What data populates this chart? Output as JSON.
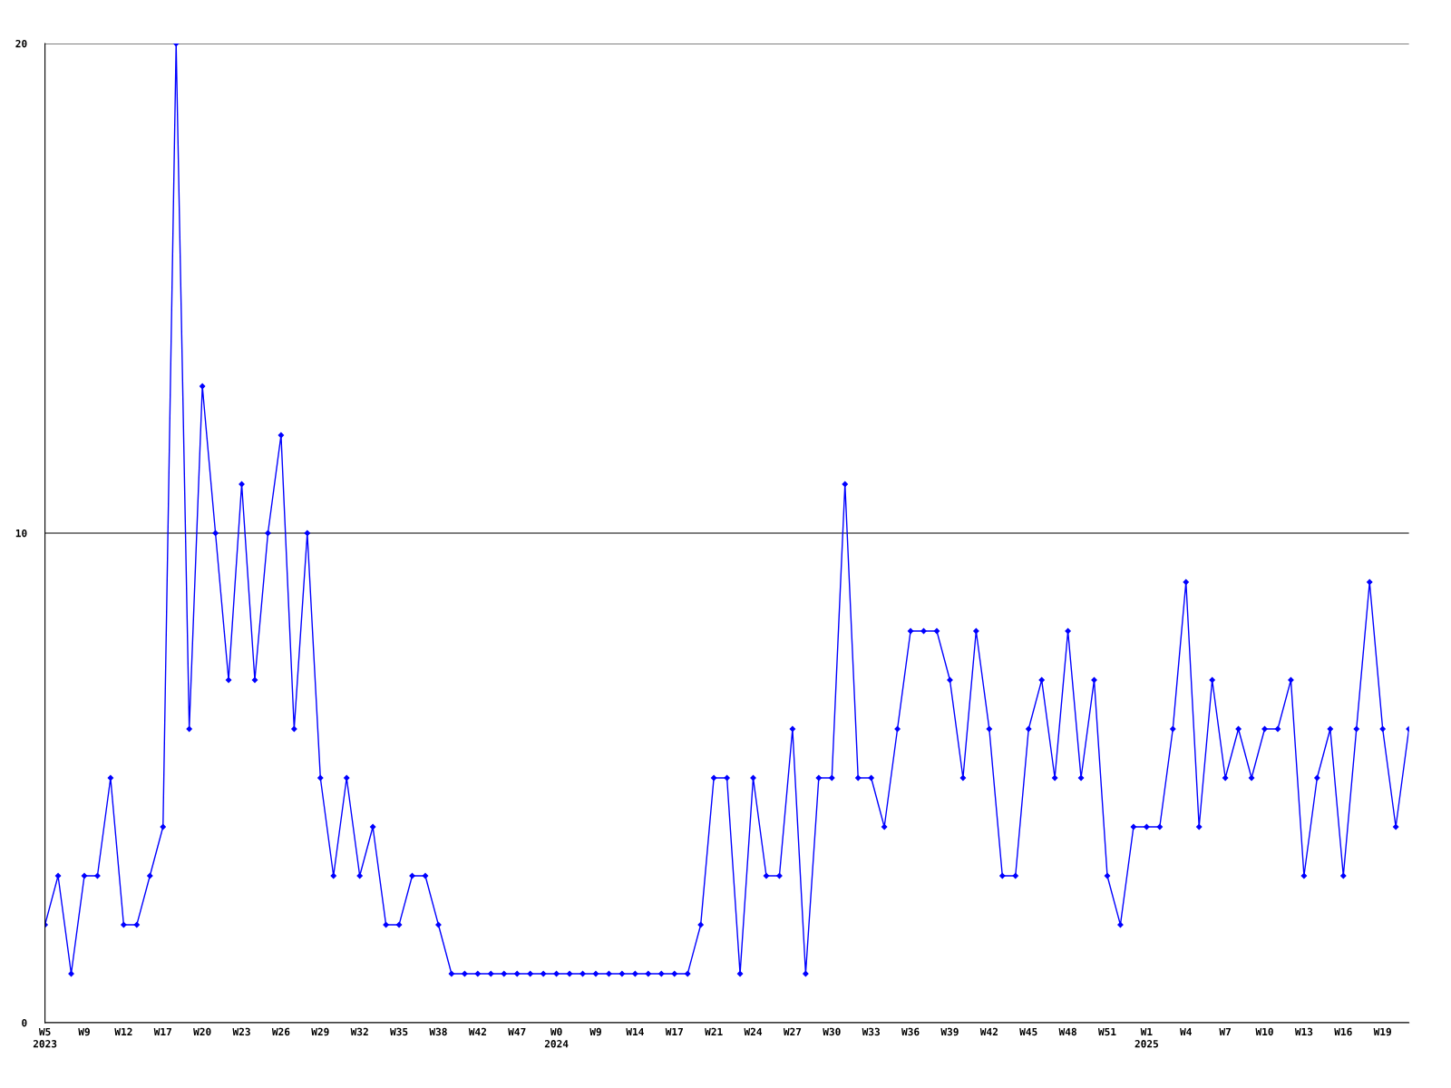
{
  "chart_data": {
    "type": "line",
    "categories": [
      "W5\n2023",
      null,
      null,
      "W9",
      null,
      null,
      "W12",
      null,
      null,
      "W17",
      null,
      null,
      "W20",
      null,
      null,
      "W23",
      null,
      null,
      "W26",
      null,
      null,
      "W29",
      null,
      null,
      "W32",
      null,
      null,
      "W35",
      null,
      null,
      "W38",
      null,
      null,
      "W42",
      null,
      null,
      "W47",
      null,
      null,
      "W0\n2024",
      null,
      null,
      "W9",
      null,
      null,
      "W14",
      null,
      null,
      "W17",
      null,
      null,
      "W21",
      null,
      null,
      "W24",
      null,
      null,
      "W27",
      null,
      null,
      "W30",
      null,
      null,
      "W33",
      null,
      null,
      "W36",
      null,
      null,
      "W39",
      null,
      null,
      "W42",
      null,
      null,
      "W45",
      null,
      null,
      "W48",
      null,
      null,
      "W51",
      null,
      null,
      "W1\n2025",
      null,
      null,
      "W4",
      null,
      null,
      "W7",
      null,
      null,
      "W10",
      null,
      null,
      "W13",
      null,
      null,
      "W16",
      null,
      null,
      "W19",
      null,
      null
    ],
    "series": [
      {
        "color": "#0000ff",
        "values": [
          2,
          3,
          1,
          3,
          3,
          5,
          2,
          2,
          3,
          4,
          20,
          6,
          13,
          10,
          7,
          11,
          7,
          10,
          12,
          6,
          10,
          5,
          3,
          5,
          3,
          4,
          2,
          2,
          3,
          3,
          2,
          1,
          1,
          1,
          1,
          1,
          1,
          1,
          1,
          1,
          1,
          1,
          1,
          1,
          1,
          1,
          1,
          1,
          1,
          1,
          2,
          5,
          5,
          1,
          5,
          3,
          3,
          6,
          1,
          5,
          5,
          11,
          5,
          5,
          4,
          6,
          8,
          8,
          8,
          7,
          5,
          8,
          6,
          3,
          3,
          6,
          7,
          5,
          8,
          5,
          7,
          3,
          2,
          4,
          4,
          4,
          6,
          9,
          4,
          7,
          5,
          6,
          5,
          6,
          6,
          7,
          3,
          5,
          6,
          3,
          6,
          9,
          6,
          4,
          6
        ]
      }
    ],
    "ylim": [
      0,
      20
    ],
    "yticks": [
      0,
      10,
      20
    ],
    "grid": "y",
    "marker": "diamond",
    "line_style": "solid"
  }
}
